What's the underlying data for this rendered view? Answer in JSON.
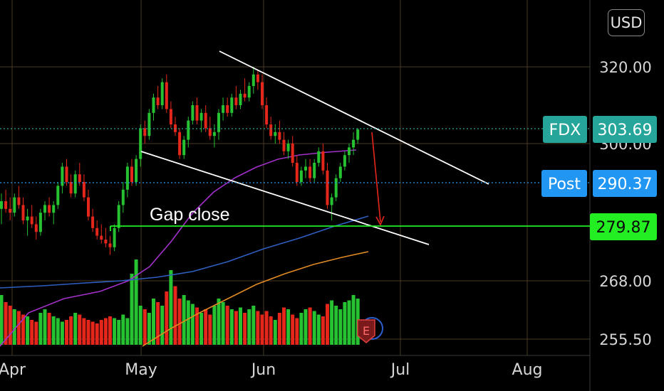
{
  "currency": "USD",
  "symbol_tag": "FDX",
  "last_price_label": "303.69",
  "post_tag": "Post",
  "post_price_label": "290.37",
  "level_price_label": "279.87",
  "annotation": "Gap close",
  "event_marker": "E",
  "colors": {
    "up": "#26c232",
    "down": "#e5271b",
    "fdx_tag": "#26a69a",
    "post_tag": "#2196f3",
    "level": "#22ee22",
    "ma_fast": "#a030c8",
    "ma_mid": "#2e5fc0",
    "ma_slow": "#e08a24",
    "grid": "#4a3a22"
  },
  "chart_data": {
    "type": "candlestick",
    "x_ticks": [
      "Apr",
      "May",
      "Jun",
      "Jul",
      "Aug"
    ],
    "y_ticks": [
      "320.00",
      "300.00",
      "268.00",
      "255.50"
    ],
    "last_price": 303.69,
    "post_price": 290.37,
    "level": 279.87,
    "candles": [
      {
        "o": 283,
        "h": 287,
        "l": 279,
        "c": 285
      },
      {
        "o": 285,
        "h": 288,
        "l": 282,
        "c": 283
      },
      {
        "o": 283,
        "h": 286,
        "l": 280,
        "c": 282
      },
      {
        "o": 282,
        "h": 287,
        "l": 281,
        "c": 286
      },
      {
        "o": 286,
        "h": 289,
        "l": 283,
        "c": 284
      },
      {
        "o": 284,
        "h": 286,
        "l": 279,
        "c": 280
      },
      {
        "o": 280,
        "h": 283,
        "l": 276,
        "c": 281
      },
      {
        "o": 281,
        "h": 284,
        "l": 278,
        "c": 279
      },
      {
        "o": 279,
        "h": 281,
        "l": 275,
        "c": 277
      },
      {
        "o": 277,
        "h": 283,
        "l": 276,
        "c": 282
      },
      {
        "o": 282,
        "h": 285,
        "l": 280,
        "c": 284
      },
      {
        "o": 284,
        "h": 286,
        "l": 281,
        "c": 282
      },
      {
        "o": 282,
        "h": 285,
        "l": 279,
        "c": 284
      },
      {
        "o": 284,
        "h": 290,
        "l": 283,
        "c": 289
      },
      {
        "o": 289,
        "h": 295,
        "l": 287,
        "c": 294
      },
      {
        "o": 294,
        "h": 296,
        "l": 289,
        "c": 290
      },
      {
        "o": 290,
        "h": 292,
        "l": 286,
        "c": 287
      },
      {
        "o": 287,
        "h": 293,
        "l": 286,
        "c": 292
      },
      {
        "o": 292,
        "h": 295,
        "l": 289,
        "c": 290
      },
      {
        "o": 290,
        "h": 292,
        "l": 285,
        "c": 286
      },
      {
        "o": 286,
        "h": 288,
        "l": 280,
        "c": 281
      },
      {
        "o": 281,
        "h": 283,
        "l": 277,
        "c": 278
      },
      {
        "o": 278,
        "h": 280,
        "l": 275,
        "c": 276
      },
      {
        "o": 276,
        "h": 279,
        "l": 274,
        "c": 275
      },
      {
        "o": 275,
        "h": 278,
        "l": 273,
        "c": 274
      },
      {
        "o": 274,
        "h": 276,
        "l": 271,
        "c": 273
      },
      {
        "o": 273,
        "h": 279,
        "l": 272,
        "c": 278
      },
      {
        "o": 278,
        "h": 285,
        "l": 277,
        "c": 284
      },
      {
        "o": 284,
        "h": 290,
        "l": 282,
        "c": 288
      },
      {
        "o": 288,
        "h": 295,
        "l": 286,
        "c": 294
      },
      {
        "o": 294,
        "h": 296,
        "l": 289,
        "c": 290
      },
      {
        "o": 290,
        "h": 297,
        "l": 289,
        "c": 296
      },
      {
        "o": 296,
        "h": 305,
        "l": 294,
        "c": 304
      },
      {
        "o": 304,
        "h": 306,
        "l": 300,
        "c": 302
      },
      {
        "o": 302,
        "h": 309,
        "l": 301,
        "c": 308
      },
      {
        "o": 308,
        "h": 313,
        "l": 306,
        "c": 312
      },
      {
        "o": 312,
        "h": 315,
        "l": 309,
        "c": 310
      },
      {
        "o": 310,
        "h": 317,
        "l": 309,
        "c": 316
      },
      {
        "o": 316,
        "h": 318,
        "l": 308,
        "c": 309
      },
      {
        "o": 309,
        "h": 311,
        "l": 304,
        "c": 305
      },
      {
        "o": 305,
        "h": 307,
        "l": 302,
        "c": 303
      },
      {
        "o": 303,
        "h": 304,
        "l": 296,
        "c": 297
      },
      {
        "o": 297,
        "h": 302,
        "l": 296,
        "c": 301
      },
      {
        "o": 301,
        "h": 307,
        "l": 299,
        "c": 306
      },
      {
        "o": 306,
        "h": 311,
        "l": 305,
        "c": 310
      },
      {
        "o": 310,
        "h": 312,
        "l": 305,
        "c": 306
      },
      {
        "o": 306,
        "h": 309,
        "l": 303,
        "c": 308
      },
      {
        "o": 308,
        "h": 310,
        "l": 303,
        "c": 304
      },
      {
        "o": 304,
        "h": 307,
        "l": 301,
        "c": 302
      },
      {
        "o": 302,
        "h": 305,
        "l": 299,
        "c": 303
      },
      {
        "o": 303,
        "h": 309,
        "l": 301,
        "c": 308
      },
      {
        "o": 308,
        "h": 312,
        "l": 306,
        "c": 310
      },
      {
        "o": 310,
        "h": 312,
        "l": 307,
        "c": 308
      },
      {
        "o": 308,
        "h": 313,
        "l": 307,
        "c": 312
      },
      {
        "o": 312,
        "h": 315,
        "l": 309,
        "c": 310
      },
      {
        "o": 310,
        "h": 314,
        "l": 309,
        "c": 313
      },
      {
        "o": 313,
        "h": 317,
        "l": 311,
        "c": 312
      },
      {
        "o": 312,
        "h": 316,
        "l": 311,
        "c": 315
      },
      {
        "o": 315,
        "h": 320,
        "l": 313,
        "c": 318
      },
      {
        "o": 318,
        "h": 319,
        "l": 314,
        "c": 316
      },
      {
        "o": 316,
        "h": 318,
        "l": 309,
        "c": 310
      },
      {
        "o": 310,
        "h": 312,
        "l": 304,
        "c": 305
      },
      {
        "o": 305,
        "h": 307,
        "l": 301,
        "c": 302
      },
      {
        "o": 302,
        "h": 305,
        "l": 300,
        "c": 303
      },
      {
        "o": 303,
        "h": 306,
        "l": 300,
        "c": 301
      },
      {
        "o": 301,
        "h": 303,
        "l": 297,
        "c": 298
      },
      {
        "o": 298,
        "h": 301,
        "l": 296,
        "c": 300
      },
      {
        "o": 300,
        "h": 302,
        "l": 294,
        "c": 295
      },
      {
        "o": 295,
        "h": 297,
        "l": 289,
        "c": 290
      },
      {
        "o": 290,
        "h": 294,
        "l": 289,
        "c": 293
      },
      {
        "o": 293,
        "h": 296,
        "l": 291,
        "c": 294
      },
      {
        "o": 294,
        "h": 296,
        "l": 290,
        "c": 291
      },
      {
        "o": 291,
        "h": 296,
        "l": 290,
        "c": 295
      },
      {
        "o": 295,
        "h": 299,
        "l": 294,
        "c": 298
      },
      {
        "o": 298,
        "h": 300,
        "l": 292,
        "c": 293
      },
      {
        "o": 293,
        "h": 295,
        "l": 283,
        "c": 284
      },
      {
        "o": 284,
        "h": 287,
        "l": 280,
        "c": 286
      },
      {
        "o": 286,
        "h": 292,
        "l": 285,
        "c": 291
      },
      {
        "o": 291,
        "h": 295,
        "l": 290,
        "c": 294
      },
      {
        "o": 294,
        "h": 298,
        "l": 293,
        "c": 297
      },
      {
        "o": 297,
        "h": 300,
        "l": 295,
        "c": 299
      },
      {
        "o": 299,
        "h": 303,
        "l": 297,
        "c": 301
      },
      {
        "o": 301,
        "h": 304,
        "l": 300,
        "c": 303.69
      }
    ],
    "volume": [
      28,
      24,
      22,
      20,
      19,
      17,
      16,
      14,
      13,
      18,
      20,
      18,
      16,
      15,
      13,
      14,
      16,
      18,
      17,
      15,
      14,
      13,
      12,
      14,
      15,
      16,
      15,
      14,
      17,
      15,
      40,
      48,
      22,
      20,
      18,
      26,
      24,
      22,
      30,
      42,
      33,
      26,
      28,
      25,
      23,
      21,
      18,
      20,
      17,
      22,
      26,
      24,
      22,
      20,
      19,
      21,
      18,
      20,
      22,
      19,
      17,
      19,
      16,
      14,
      18,
      21,
      20,
      17,
      15,
      18,
      20,
      21,
      19,
      17,
      16,
      23,
      25,
      22,
      20,
      24,
      25,
      28,
      26
    ],
    "volume_up": [
      1,
      0,
      0,
      1,
      0,
      0,
      1,
      0,
      0,
      1,
      1,
      0,
      1,
      1,
      1,
      0,
      0,
      1,
      0,
      0,
      0,
      0,
      0,
      0,
      0,
      0,
      1,
      1,
      1,
      1,
      1,
      1,
      1,
      0,
      1,
      1,
      0,
      1,
      0,
      1,
      0,
      0,
      1,
      1,
      1,
      0,
      1,
      0,
      0,
      1,
      1,
      1,
      0,
      1,
      0,
      1,
      0,
      1,
      1,
      0,
      0,
      0,
      0,
      1,
      0,
      0,
      1,
      0,
      0,
      1,
      1,
      0,
      1,
      1,
      0,
      0,
      1,
      1,
      1,
      1,
      1,
      1,
      1
    ]
  }
}
